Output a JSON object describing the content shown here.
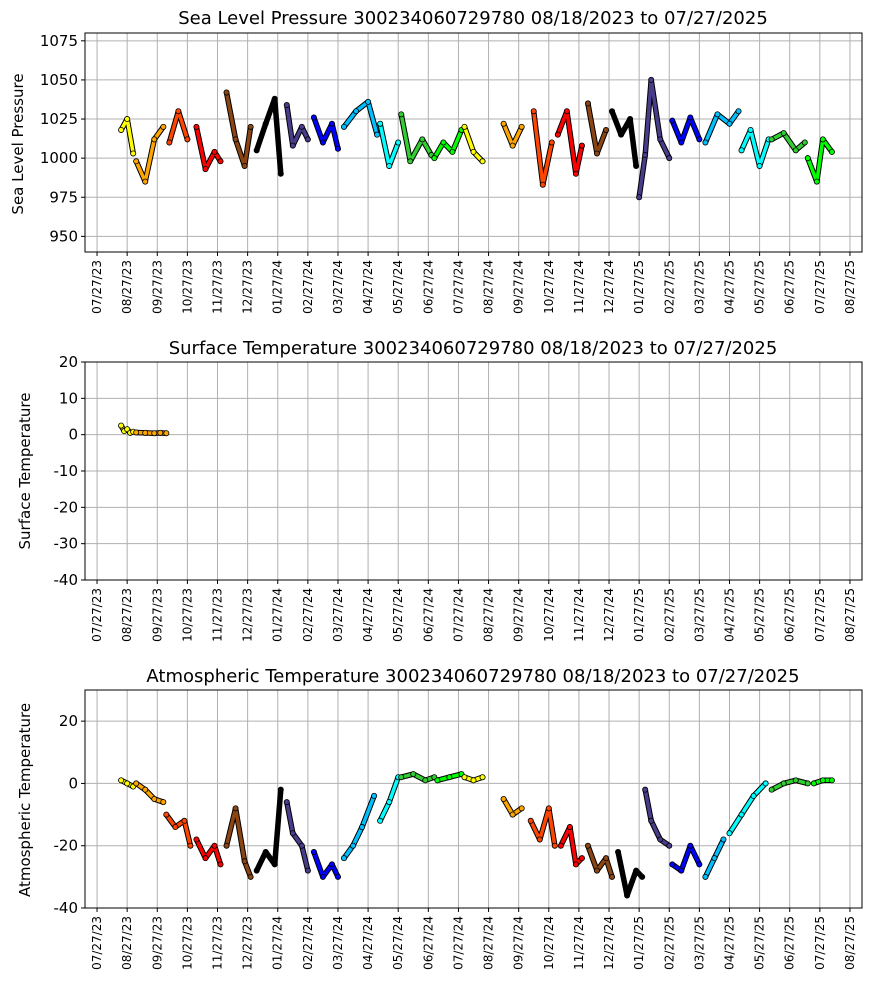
{
  "chart_data": [
    {
      "type": "scatter",
      "title": "Sea Level Pressure 300234060729780  08/18/2023 to 07/27/2025",
      "ylabel": "Sea Level Pressure",
      "xlabel": "",
      "ylim": [
        940,
        1080
      ],
      "yticks": [
        950,
        975,
        1000,
        1025,
        1050,
        1075
      ],
      "xticklabels": [
        "07/27/23",
        "08/27/23",
        "09/27/23",
        "10/27/23",
        "11/27/23",
        "12/27/23",
        "01/27/24",
        "02/27/24",
        "03/27/24",
        "04/27/24",
        "05/27/24",
        "06/27/24",
        "07/27/24",
        "08/27/24",
        "09/27/24",
        "10/27/24",
        "11/27/24",
        "12/27/24",
        "01/27/25",
        "02/27/25",
        "03/27/25",
        "04/27/25",
        "05/27/25",
        "06/27/25",
        "07/27/25",
        "08/27/25"
      ],
      "grid": true,
      "series": [
        {
          "color": "#ffff00",
          "x": [
            0.8,
            1.0,
            1.2
          ],
          "y": [
            1018,
            1025,
            1003
          ]
        },
        {
          "color": "#ffa500",
          "x": [
            1.3,
            1.6,
            1.9,
            2.2
          ],
          "y": [
            998,
            985,
            1012,
            1020
          ]
        },
        {
          "color": "#ff4500",
          "x": [
            2.4,
            2.7,
            3.0
          ],
          "y": [
            1010,
            1030,
            1012
          ]
        },
        {
          "color": "#ff0000",
          "x": [
            3.3,
            3.6,
            3.9,
            4.1
          ],
          "y": [
            1020,
            993,
            1004,
            998
          ]
        },
        {
          "color": "#8b4513",
          "x": [
            4.3,
            4.6,
            4.9,
            5.1
          ],
          "y": [
            1042,
            1012,
            995,
            1020
          ]
        },
        {
          "color": "#000000",
          "x": [
            5.3,
            5.6,
            5.9,
            6.1
          ],
          "y": [
            1005,
            1022,
            1038,
            990
          ]
        },
        {
          "color": "#483d8b",
          "x": [
            6.3,
            6.5,
            6.8,
            7.0
          ],
          "y": [
            1034,
            1008,
            1020,
            1012
          ]
        },
        {
          "color": "#0000ff",
          "x": [
            7.2,
            7.5,
            7.8,
            8.0
          ],
          "y": [
            1026,
            1010,
            1022,
            1006
          ]
        },
        {
          "color": "#00bfff",
          "x": [
            8.2,
            8.6,
            9.0,
            9.3
          ],
          "y": [
            1020,
            1030,
            1036,
            1015
          ]
        },
        {
          "color": "#00ffff",
          "x": [
            9.4,
            9.7,
            10.0
          ],
          "y": [
            1022,
            995,
            1010
          ]
        },
        {
          "color": "#32cd32",
          "x": [
            10.1,
            10.4,
            10.8,
            11.1
          ],
          "y": [
            1028,
            998,
            1012,
            1002
          ]
        },
        {
          "color": "#00ff00",
          "x": [
            11.2,
            11.5,
            11.8,
            12.1
          ],
          "y": [
            1000,
            1010,
            1004,
            1018
          ]
        },
        {
          "color": "#ffff00",
          "x": [
            12.2,
            12.5,
            12.8
          ],
          "y": [
            1020,
            1004,
            998
          ]
        },
        {
          "color": "#ffa500",
          "x": [
            13.5,
            13.8,
            14.1
          ],
          "y": [
            1022,
            1008,
            1020
          ]
        },
        {
          "color": "#ff4500",
          "x": [
            14.5,
            14.8,
            15.1
          ],
          "y": [
            1030,
            983,
            1010
          ]
        },
        {
          "color": "#ff0000",
          "x": [
            15.3,
            15.6,
            15.9,
            16.1
          ],
          "y": [
            1015,
            1030,
            990,
            1008
          ]
        },
        {
          "color": "#8b4513",
          "x": [
            16.3,
            16.6,
            16.9
          ],
          "y": [
            1035,
            1003,
            1018
          ]
        },
        {
          "color": "#000000",
          "x": [
            17.1,
            17.4,
            17.7,
            17.9
          ],
          "y": [
            1030,
            1015,
            1025,
            995
          ]
        },
        {
          "color": "#483d8b",
          "x": [
            18.0,
            18.2,
            18.4,
            18.7,
            19.0
          ],
          "y": [
            975,
            1002,
            1050,
            1012,
            1000
          ]
        },
        {
          "color": "#0000ff",
          "x": [
            19.1,
            19.4,
            19.7,
            20.0
          ],
          "y": [
            1024,
            1010,
            1026,
            1012
          ]
        },
        {
          "color": "#00bfff",
          "x": [
            20.2,
            20.6,
            21.0,
            21.3
          ],
          "y": [
            1010,
            1028,
            1022,
            1030
          ]
        },
        {
          "color": "#00ffff",
          "x": [
            21.4,
            21.7,
            22.0,
            22.3
          ],
          "y": [
            1005,
            1018,
            995,
            1012
          ]
        },
        {
          "color": "#32cd32",
          "x": [
            22.4,
            22.8,
            23.2,
            23.5
          ],
          "y": [
            1012,
            1016,
            1005,
            1010
          ]
        },
        {
          "color": "#00ff00",
          "x": [
            23.6,
            23.9,
            24.1,
            24.4
          ],
          "y": [
            1000,
            985,
            1012,
            1004
          ]
        }
      ]
    },
    {
      "type": "scatter",
      "title": "Surface Temperature 300234060729780  08/18/2023 to 07/27/2025",
      "ylabel": "Surface Temperature",
      "xlabel": "",
      "ylim": [
        -40,
        20
      ],
      "yticks": [
        -40,
        -30,
        -20,
        -10,
        0,
        10,
        20
      ],
      "xticklabels": [
        "07/27/23",
        "08/27/23",
        "09/27/23",
        "10/27/23",
        "11/27/23",
        "12/27/23",
        "01/27/24",
        "02/27/24",
        "03/27/24",
        "04/27/24",
        "05/27/24",
        "06/27/24",
        "07/27/24",
        "08/27/24",
        "09/27/24",
        "10/27/24",
        "11/27/24",
        "12/27/24",
        "01/27/25",
        "02/27/25",
        "03/27/25",
        "04/27/25",
        "05/27/25",
        "06/27/25",
        "07/27/25",
        "08/27/25"
      ],
      "grid": true,
      "series": [
        {
          "color": "#ffff00",
          "x": [
            0.8,
            0.9,
            1.0,
            1.1,
            1.2
          ],
          "y": [
            2.5,
            1.0,
            1.5,
            0.5,
            0.8
          ]
        },
        {
          "color": "#ffa500",
          "x": [
            1.3,
            1.6,
            1.9,
            2.1,
            2.3
          ],
          "y": [
            0.6,
            0.5,
            0.4,
            0.5,
            0.4
          ]
        }
      ]
    },
    {
      "type": "scatter",
      "title": "Atmospheric Temperature 300234060729780  08/18/2023 to 07/27/2025",
      "ylabel": "Atmospheric Temperature",
      "xlabel": "",
      "ylim": [
        -40,
        30
      ],
      "yticks": [
        -40,
        -20,
        0,
        20
      ],
      "xticklabels": [
        "07/27/23",
        "08/27/23",
        "09/27/23",
        "10/27/23",
        "11/27/23",
        "12/27/23",
        "01/27/24",
        "02/27/24",
        "03/27/24",
        "04/27/24",
        "05/27/24",
        "06/27/24",
        "07/27/24",
        "08/27/24",
        "09/27/24",
        "10/27/24",
        "11/27/24",
        "12/27/24",
        "01/27/25",
        "02/27/25",
        "03/27/25",
        "04/27/25",
        "05/27/25",
        "06/27/25",
        "07/27/25",
        "08/27/25"
      ],
      "grid": true,
      "series": [
        {
          "color": "#ffff00",
          "x": [
            0.8,
            1.0,
            1.2
          ],
          "y": [
            1,
            0,
            -1
          ]
        },
        {
          "color": "#ffa500",
          "x": [
            1.3,
            1.6,
            1.9,
            2.2
          ],
          "y": [
            0,
            -2,
            -5,
            -6
          ]
        },
        {
          "color": "#ff4500",
          "x": [
            2.3,
            2.6,
            2.9,
            3.1
          ],
          "y": [
            -10,
            -14,
            -12,
            -20
          ]
        },
        {
          "color": "#ff0000",
          "x": [
            3.3,
            3.6,
            3.9,
            4.1
          ],
          "y": [
            -18,
            -24,
            -20,
            -26
          ]
        },
        {
          "color": "#8b4513",
          "x": [
            4.3,
            4.6,
            4.9,
            5.1
          ],
          "y": [
            -20,
            -8,
            -25,
            -30
          ]
        },
        {
          "color": "#000000",
          "x": [
            5.3,
            5.6,
            5.9,
            6.1
          ],
          "y": [
            -28,
            -22,
            -26,
            -2
          ]
        },
        {
          "color": "#483d8b",
          "x": [
            6.3,
            6.5,
            6.8,
            7.0
          ],
          "y": [
            -6,
            -16,
            -20,
            -28
          ]
        },
        {
          "color": "#0000ff",
          "x": [
            7.2,
            7.5,
            7.8,
            8.0
          ],
          "y": [
            -22,
            -30,
            -26,
            -30
          ]
        },
        {
          "color": "#00bfff",
          "x": [
            8.2,
            8.5,
            8.8,
            9.2
          ],
          "y": [
            -24,
            -20,
            -14,
            -4
          ]
        },
        {
          "color": "#00ffff",
          "x": [
            9.4,
            9.7,
            10.0
          ],
          "y": [
            -12,
            -6,
            2
          ]
        },
        {
          "color": "#32cd32",
          "x": [
            10.1,
            10.5,
            10.9,
            11.2
          ],
          "y": [
            2,
            3,
            1,
            2
          ]
        },
        {
          "color": "#00ff00",
          "x": [
            11.3,
            11.7,
            12.1
          ],
          "y": [
            1,
            2,
            3
          ]
        },
        {
          "color": "#ffff00",
          "x": [
            12.2,
            12.5,
            12.8
          ],
          "y": [
            2,
            1,
            2
          ]
        },
        {
          "color": "#ffa500",
          "x": [
            13.5,
            13.8,
            14.1
          ],
          "y": [
            -5,
            -10,
            -8
          ]
        },
        {
          "color": "#ff4500",
          "x": [
            14.4,
            14.7,
            15.0,
            15.2
          ],
          "y": [
            -12,
            -18,
            -8,
            -20
          ]
        },
        {
          "color": "#ff0000",
          "x": [
            15.4,
            15.7,
            15.9,
            16.1
          ],
          "y": [
            -20,
            -14,
            -26,
            -24
          ]
        },
        {
          "color": "#8b4513",
          "x": [
            16.3,
            16.6,
            16.9,
            17.1
          ],
          "y": [
            -20,
            -28,
            -24,
            -30
          ]
        },
        {
          "color": "#000000",
          "x": [
            17.3,
            17.6,
            17.9,
            18.1
          ],
          "y": [
            -22,
            -36,
            -28,
            -30
          ]
        },
        {
          "color": "#483d8b",
          "x": [
            18.2,
            18.4,
            18.7,
            19.0
          ],
          "y": [
            -2,
            -12,
            -18,
            -20
          ]
        },
        {
          "color": "#0000ff",
          "x": [
            19.1,
            19.4,
            19.7,
            20.0
          ],
          "y": [
            -26,
            -28,
            -20,
            -26
          ]
        },
        {
          "color": "#00bfff",
          "x": [
            20.2,
            20.5,
            20.8
          ],
          "y": [
            -30,
            -24,
            -18
          ]
        },
        {
          "color": "#00ffff",
          "x": [
            21.0,
            21.4,
            21.8,
            22.2
          ],
          "y": [
            -16,
            -10,
            -4,
            0
          ]
        },
        {
          "color": "#32cd32",
          "x": [
            22.4,
            22.8,
            23.2,
            23.6
          ],
          "y": [
            -2,
            0,
            1,
            0
          ]
        },
        {
          "color": "#00ff00",
          "x": [
            23.8,
            24.1,
            24.4
          ],
          "y": [
            0,
            1,
            1
          ]
        }
      ]
    }
  ]
}
